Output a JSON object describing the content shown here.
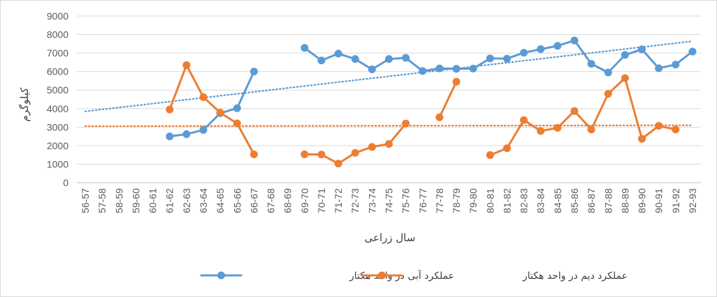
{
  "chart_data": {
    "type": "line",
    "xlabel": "سال زراعی",
    "ylabel": "کیلوگرم",
    "ylim": [
      0,
      9000
    ],
    "yticks": [
      0,
      1000,
      2000,
      3000,
      4000,
      5000,
      6000,
      7000,
      8000,
      9000
    ],
    "grid": true,
    "legend_position": "bottom",
    "categories": [
      "56-57",
      "57-58",
      "58-59",
      "59-60",
      "60-61",
      "61-62",
      "62-63",
      "63-64",
      "64-65",
      "65-66",
      "66-67",
      "67-68",
      "68-69",
      "69-70",
      "70-71",
      "71-72",
      "72-73",
      "73-74",
      "74-75",
      "75-76",
      "76-77",
      "77-78",
      "78-79",
      "79-80",
      "80-81",
      "81-82",
      "82-83",
      "83-84",
      "84-85",
      "85-86",
      "86-87",
      "87-88",
      "88-89",
      "89-90",
      "90-91",
      "91-92",
      "92-93"
    ],
    "series": [
      {
        "name": "عملکرد آبی در واحد هکتار",
        "color": "#5b9bd5",
        "values": [
          null,
          null,
          null,
          null,
          null,
          2500,
          2620,
          2850,
          3750,
          4020,
          6000,
          null,
          null,
          7280,
          6600,
          6970,
          6680,
          6120,
          6680,
          6740,
          6030,
          6170,
          6150,
          6160,
          6710,
          6700,
          7020,
          7210,
          7390,
          7680,
          6420,
          5950,
          6900,
          7200,
          6180,
          6380,
          7080
        ],
        "trendline": {
          "style": "dotted",
          "start": 3850,
          "end": 7640
        }
      },
      {
        "name": "عملکرد دیم در واحد هکتار",
        "color": "#ed7d31",
        "values": [
          null,
          null,
          null,
          null,
          null,
          3950,
          6350,
          4620,
          3780,
          3200,
          1530,
          null,
          null,
          1530,
          1520,
          1030,
          1610,
          1930,
          2090,
          3190,
          null,
          3530,
          5450,
          null,
          1490,
          1860,
          3380,
          2790,
          2960,
          3870,
          2870,
          4800,
          5650,
          2370,
          3070,
          2870,
          null
        ],
        "trendline": {
          "style": "dotted",
          "start": 3050,
          "end": 3100
        }
      }
    ]
  }
}
